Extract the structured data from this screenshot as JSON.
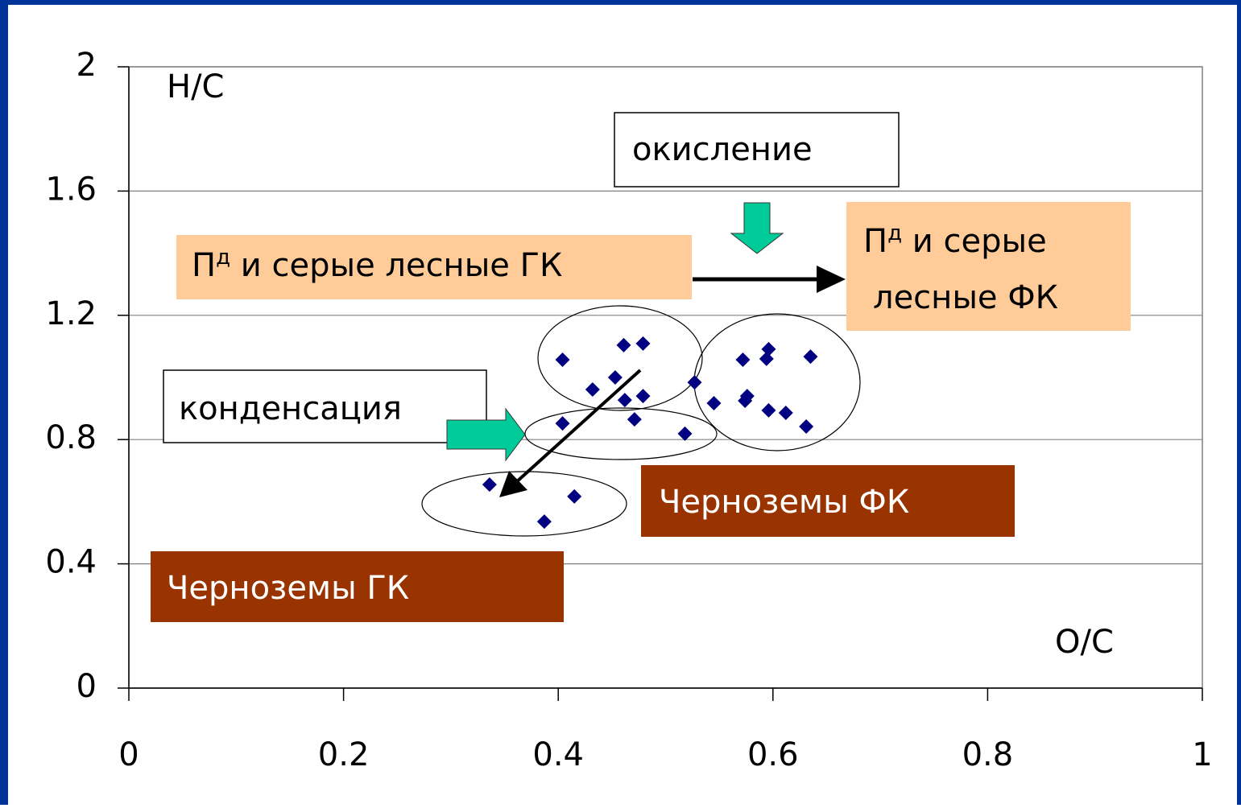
{
  "chart_data": {
    "type": "scatter",
    "x_label": "O/C",
    "y_label": "H/C",
    "xlim": [
      0,
      1
    ],
    "xticks": [
      0,
      0.2,
      0.4,
      0.6,
      0.8,
      1
    ],
    "ylim": [
      0,
      2
    ],
    "yticks": [
      0,
      0.4,
      0.8,
      1.2,
      1.6,
      2
    ],
    "grid": true,
    "series": [
      {
        "color": "#000080",
        "x": [
          0.404,
          0.461,
          0.479,
          0.453,
          0.432,
          0.462,
          0.479,
          0.471,
          0.404,
          0.518,
          0.527,
          0.545,
          0.572,
          0.596,
          0.594,
          0.635,
          0.576,
          0.574,
          0.596,
          0.612,
          0.631,
          0.336,
          0.415,
          0.387
        ],
        "values": [
          1.057,
          1.104,
          1.109,
          1.0,
          0.961,
          0.927,
          0.94,
          0.865,
          0.852,
          0.819,
          0.984,
          0.917,
          1.057,
          1.091,
          1.06,
          1.067,
          0.94,
          0.925,
          0.894,
          0.886,
          0.842,
          0.655,
          0.617,
          0.536
        ]
      }
    ],
    "annotations": {
      "oxidation": "окисление",
      "condensation": "конденсация",
      "gray_gk": {
        "base": "П",
        "sup": "д",
        "text": " и серые лесные ГК"
      },
      "gray_fk": {
        "base": "П",
        "sup": "д",
        "line1": " и серые",
        "line2": "лесные ФК"
      },
      "chern_fk": "Черноземы ФК",
      "chern_gk": "Черноземы ГК"
    }
  }
}
